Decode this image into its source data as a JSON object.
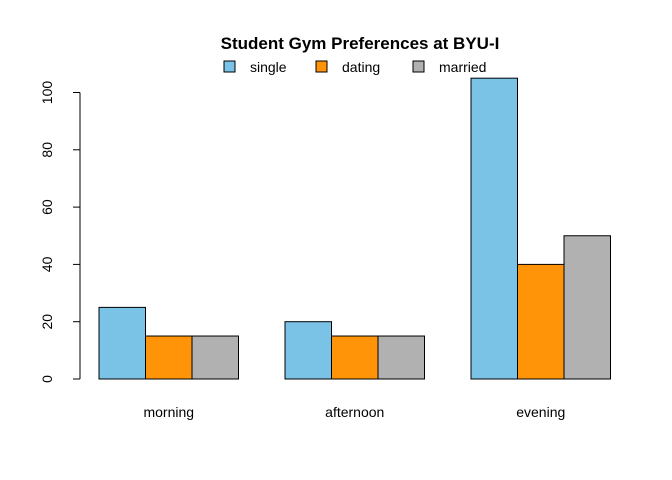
{
  "chart_data": {
    "type": "bar",
    "title": "Student Gym Preferences at BYU-I",
    "xlabel": "",
    "ylabel": "",
    "categories": [
      "morning",
      "afternoon",
      "evening"
    ],
    "series": [
      {
        "name": "single",
        "color": "#7ac3e6",
        "values": [
          25,
          20,
          105
        ]
      },
      {
        "name": "dating",
        "color": "#ff9408",
        "values": [
          15,
          15,
          40
        ]
      },
      {
        "name": "married",
        "color": "#b1b1b1",
        "values": [
          15,
          15,
          50
        ]
      }
    ],
    "ylim": [
      0,
      105
    ],
    "yticks": [
      0,
      20,
      40,
      60,
      80,
      100
    ],
    "legend": "top",
    "grid": false
  }
}
